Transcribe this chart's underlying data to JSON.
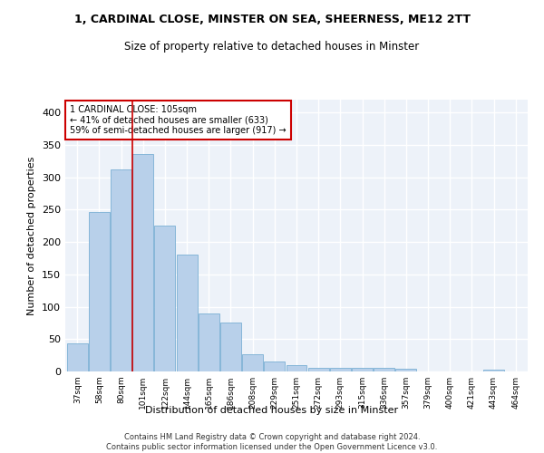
{
  "title1": "1, CARDINAL CLOSE, MINSTER ON SEA, SHEERNESS, ME12 2TT",
  "title2": "Size of property relative to detached houses in Minster",
  "xlabel": "Distribution of detached houses by size in Minster",
  "ylabel": "Number of detached properties",
  "categories": [
    "37sqm",
    "58sqm",
    "80sqm",
    "101sqm",
    "122sqm",
    "144sqm",
    "165sqm",
    "186sqm",
    "208sqm",
    "229sqm",
    "251sqm",
    "272sqm",
    "293sqm",
    "315sqm",
    "336sqm",
    "357sqm",
    "379sqm",
    "400sqm",
    "421sqm",
    "443sqm",
    "464sqm"
  ],
  "values": [
    44,
    246,
    312,
    336,
    226,
    181,
    90,
    75,
    27,
    16,
    10,
    5,
    6,
    5,
    5,
    4,
    0,
    0,
    0,
    3,
    0
  ],
  "bar_color": "#b8d0ea",
  "bar_edgecolor": "#7aafd4",
  "vline_x": 2.5,
  "vline_color": "#cc0000",
  "annotation_line1": "1 CARDINAL CLOSE: 105sqm",
  "annotation_line2": "← 41% of detached houses are smaller (633)",
  "annotation_line3": "59% of semi-detached houses are larger (917) →",
  "annotation_box_color": "#ffffff",
  "annotation_box_edgecolor": "#cc0000",
  "background_color": "#edf2f9",
  "grid_color": "#ffffff",
  "footer": "Contains HM Land Registry data © Crown copyright and database right 2024.\nContains public sector information licensed under the Open Government Licence v3.0.",
  "ylim": [
    0,
    420
  ],
  "yticks": [
    0,
    50,
    100,
    150,
    200,
    250,
    300,
    350,
    400
  ]
}
